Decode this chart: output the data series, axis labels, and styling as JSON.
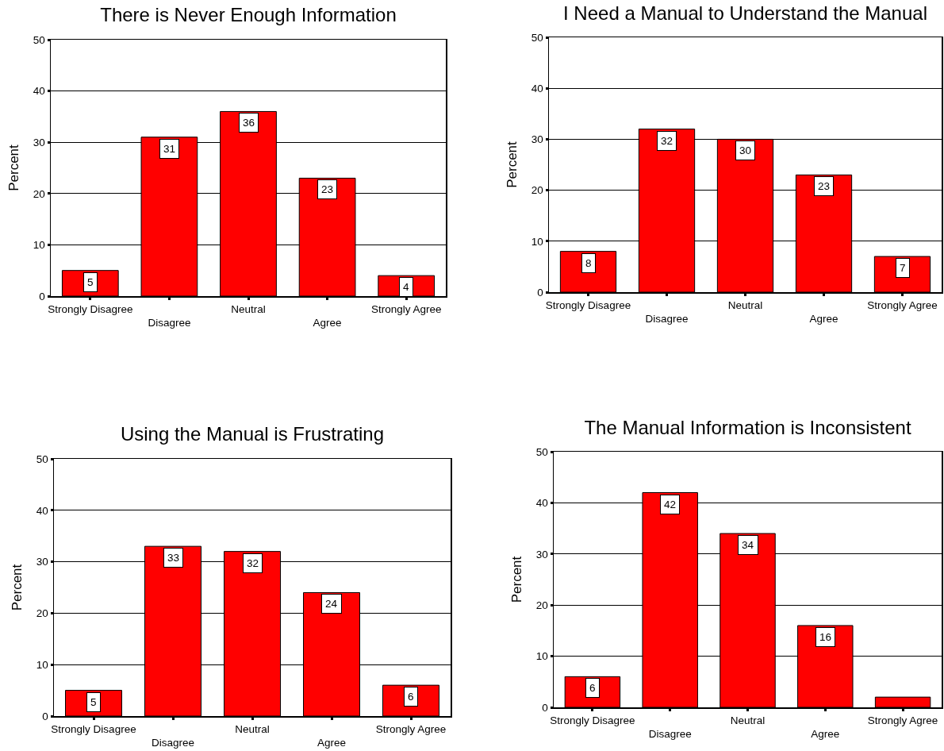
{
  "chart_data": [
    {
      "type": "bar",
      "title": "There is Never Enough Information",
      "ylabel": "Percent",
      "categories": [
        "Strongly Disagree",
        "Disagree",
        "Neutral",
        "Agree",
        "Strongly Agree"
      ],
      "values": [
        5,
        31,
        36,
        23,
        4
      ],
      "color": "#ff0000",
      "ylim": [
        0,
        50
      ],
      "yticks": [
        0,
        10,
        20,
        30,
        40,
        50
      ],
      "grid": "y",
      "data_labels": true
    },
    {
      "type": "bar",
      "title": "I Need a Manual to Understand the Manual",
      "ylabel": "Percent",
      "categories": [
        "Strongly Disagree",
        "Disagree",
        "Neutral",
        "Agree",
        "Strongly Agree"
      ],
      "values": [
        8,
        32,
        30,
        23,
        7
      ],
      "color": "#ff0000",
      "ylim": [
        0,
        50
      ],
      "yticks": [
        0,
        10,
        20,
        30,
        40,
        50
      ],
      "grid": "y",
      "data_labels": true
    },
    {
      "type": "bar",
      "title": "Using the Manual is Frustrating",
      "ylabel": "Percent",
      "categories": [
        "Strongly Disagree",
        "Disagree",
        "Neutral",
        "Agree",
        "Strongly Agree"
      ],
      "values": [
        5,
        33,
        32,
        24,
        6
      ],
      "color": "#ff0000",
      "ylim": [
        0,
        50
      ],
      "yticks": [
        0,
        10,
        20,
        30,
        40,
        50
      ],
      "grid": "y",
      "data_labels": true
    },
    {
      "type": "bar",
      "title": "The Manual Information is Inconsistent",
      "ylabel": "Percent",
      "categories": [
        "Strongly Disagree",
        "Disagree",
        "Neutral",
        "Agree",
        "Strongly Agree"
      ],
      "values": [
        6,
        42,
        34,
        16,
        2
      ],
      "value_labels": [
        "6",
        "42",
        "34",
        "16",
        null
      ],
      "color": "#ff0000",
      "ylim": [
        0,
        50
      ],
      "yticks": [
        0,
        10,
        20,
        30,
        40,
        50
      ],
      "grid": "y"
    }
  ]
}
